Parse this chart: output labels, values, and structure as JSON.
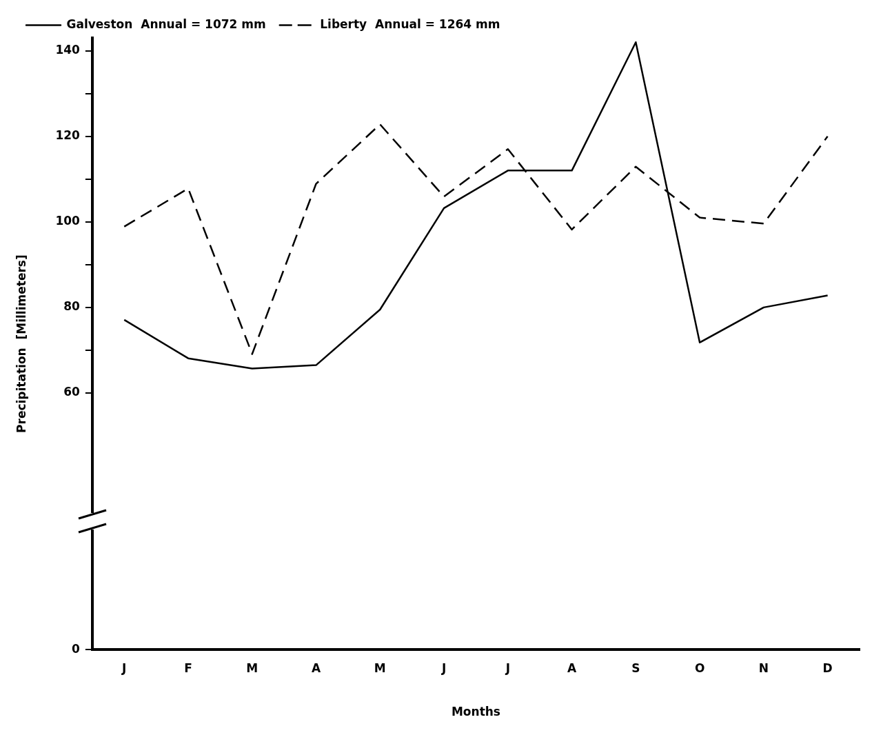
{
  "chart_data": {
    "type": "line",
    "xlabel": "Months",
    "ylabel": "Precipitation  [Millimeters]",
    "categories": [
      "J",
      "F",
      "M",
      "A",
      "M",
      "J",
      "J",
      "A",
      "S",
      "O",
      "N",
      "D"
    ],
    "series": [
      {
        "name": "Galveston  Annual = 1072 mm",
        "color": "#000000",
        "line_style": "solid",
        "values": [
          77.1,
          68.1,
          65.7,
          66.5,
          79.5,
          103.2,
          112,
          112,
          142,
          71.8,
          80,
          82.8
        ]
      },
      {
        "name": "Liberty  Annual = 1264 mm",
        "color": "#000000",
        "line_style": "dashed",
        "values": [
          98.9,
          107.8,
          69.1,
          108.9,
          122.8,
          105.9,
          117,
          98.2,
          112.9,
          101,
          99.6,
          120
        ]
      }
    ],
    "ylim": [
      0,
      143
    ],
    "yticks": [
      0,
      60,
      {
        "value": 70,
        "label": null
      },
      80,
      {
        "value": 90,
        "label": null
      },
      100,
      {
        "value": 110,
        "label": null
      },
      120,
      {
        "value": 130,
        "label": null
      },
      140
    ],
    "grid": false,
    "legend": "top left",
    "marker": "none"
  }
}
